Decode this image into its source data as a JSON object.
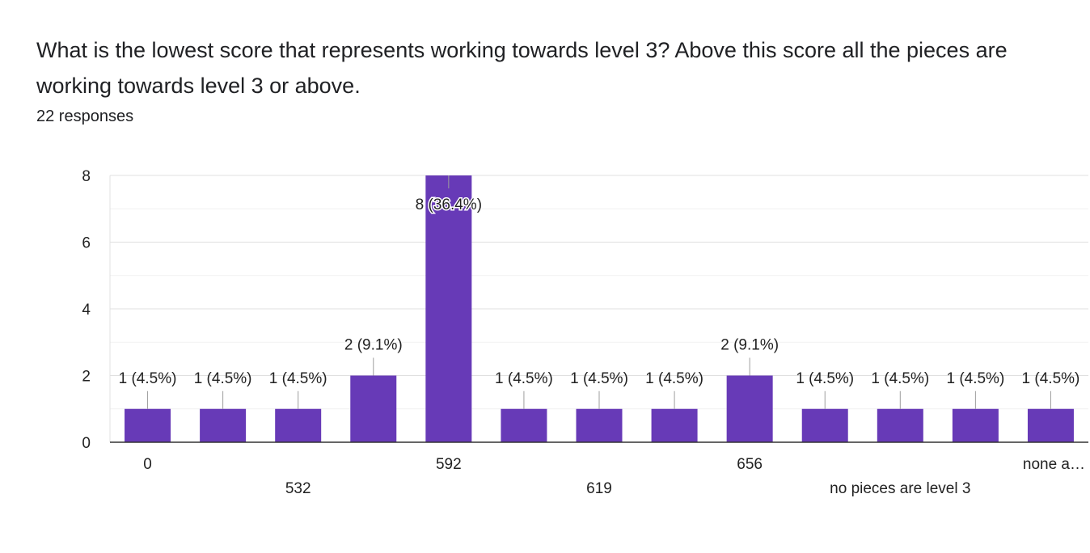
{
  "question": {
    "title": "What is the lowest score that represents working towards level 3? Above this score all the pieces are working towards level 3 or above.",
    "responses": "22 responses"
  },
  "chart_data": {
    "type": "bar",
    "categories": [
      "0",
      "",
      "532",
      "",
      "592",
      "",
      "619",
      "",
      "656",
      "",
      "no pieces are level 3",
      "",
      "none a…"
    ],
    "values": [
      1,
      1,
      1,
      2,
      8,
      1,
      1,
      1,
      2,
      1,
      1,
      1,
      1
    ],
    "data_labels": [
      "1 (4.5%)",
      "1 (4.5%)",
      "1 (4.5%)",
      "2 (9.1%)",
      "8 (36.4%)",
      "1 (4.5%)",
      "1 (4.5%)",
      "1 (4.5%)",
      "2 (9.1%)",
      "1 (4.5%)",
      "1 (4.5%)",
      "1 (4.5%)",
      "1 (4.5%)"
    ],
    "yticks": [
      "0",
      "2",
      "4",
      "6",
      "8"
    ],
    "ylim": [
      0,
      8
    ],
    "bar_color": "#673ab7",
    "grid": true,
    "xlabel": "",
    "ylabel": ""
  }
}
